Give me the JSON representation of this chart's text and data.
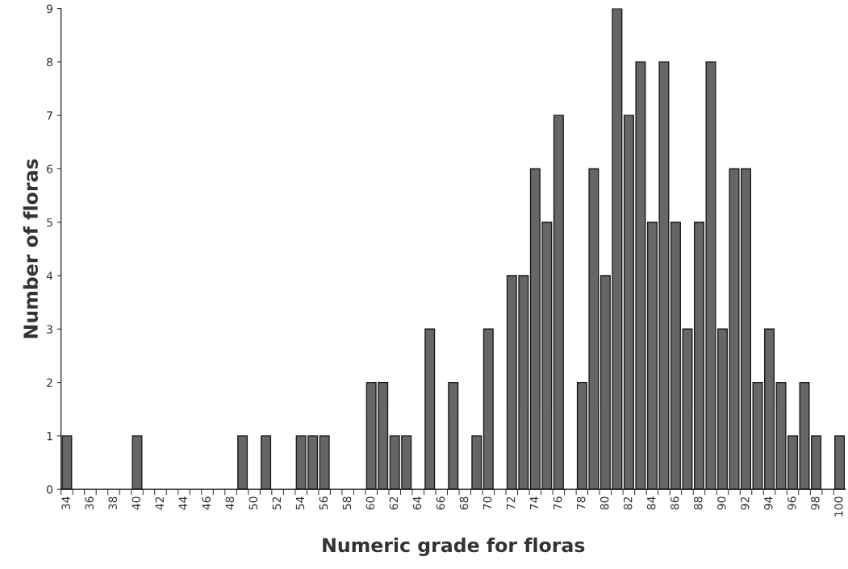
{
  "chart_data": {
    "type": "bar",
    "xlabel": "Numeric grade for floras",
    "ylabel": "Number of floras",
    "categories": [
      "34",
      null,
      "36",
      null,
      "38",
      null,
      "40",
      null,
      "42",
      null,
      "44",
      null,
      "46",
      null,
      "48",
      null,
      "50",
      null,
      "52",
      null,
      "54",
      null,
      "56",
      null,
      "58",
      null,
      "60",
      null,
      "62",
      null,
      "64",
      null,
      "66",
      null,
      "68",
      null,
      "70",
      null,
      "72",
      null,
      "74",
      null,
      "76",
      null,
      "78",
      null,
      "80",
      null,
      "82",
      null,
      "84",
      null,
      "86",
      null,
      "88",
      null,
      "90",
      null,
      "92",
      null,
      "94",
      null,
      "96",
      null,
      "98",
      null,
      "100"
    ],
    "values": [
      1,
      0,
      0,
      0,
      0,
      0,
      1,
      0,
      0,
      0,
      0,
      0,
      0,
      0,
      0,
      1,
      0,
      1,
      0,
      0,
      1,
      1,
      1,
      0,
      0,
      0,
      2,
      2,
      1,
      1,
      0,
      3,
      0,
      2,
      0,
      1,
      3,
      0,
      4,
      4,
      6,
      5,
      7,
      0,
      2,
      6,
      4,
      9,
      7,
      8,
      5,
      8,
      5,
      3,
      5,
      8,
      3,
      6,
      6,
      2,
      3,
      2,
      1,
      2,
      1,
      0,
      1
    ],
    "color": "#666666",
    "ylim": [
      0,
      9
    ],
    "yticks": [
      0,
      1,
      2,
      3,
      4,
      5,
      6,
      7,
      8,
      9
    ],
    "grid": false
  }
}
